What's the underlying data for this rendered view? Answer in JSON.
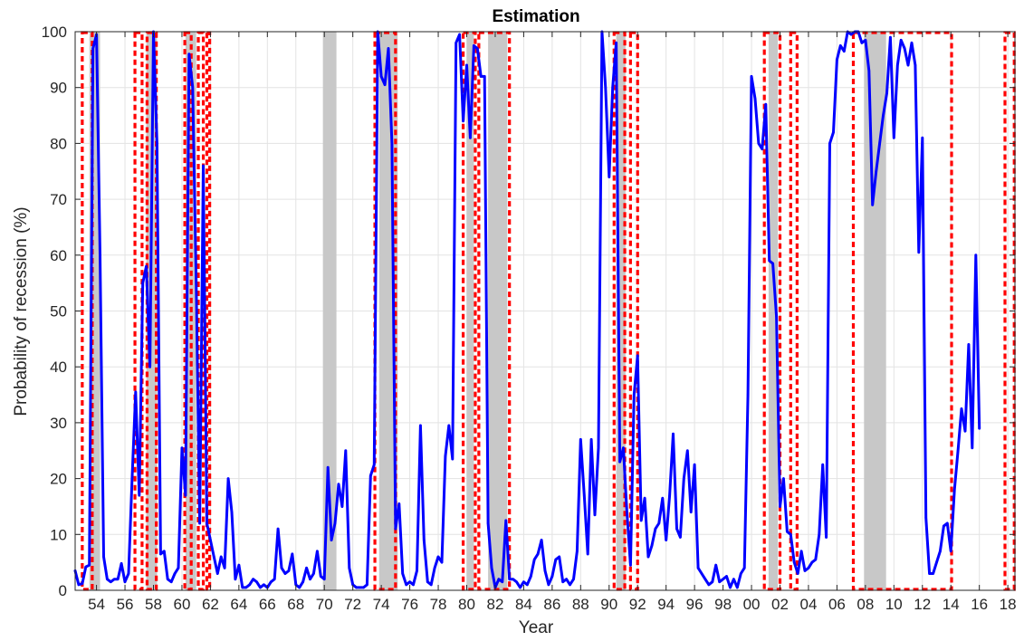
{
  "chart_data": {
    "type": "line",
    "title": "Estimation",
    "xlabel": "Year",
    "ylabel": "Probability of recession (%)",
    "xlim": [
      1952.5,
      2018.5
    ],
    "ylim": [
      0,
      100
    ],
    "grid": true,
    "x_tick_values": [
      1954,
      1956,
      1958,
      1960,
      1962,
      1964,
      1966,
      1968,
      1970,
      1972,
      1974,
      1976,
      1978,
      1980,
      1982,
      1984,
      1986,
      1988,
      1990,
      1992,
      1994,
      1996,
      1998,
      2000,
      2002,
      2004,
      2006,
      2008,
      2010,
      2012,
      2014,
      2016,
      2018
    ],
    "x_tick_labels": [
      "54",
      "56",
      "58",
      "60",
      "62",
      "64",
      "66",
      "68",
      "70",
      "72",
      "74",
      "76",
      "78",
      "80",
      "82",
      "84",
      "86",
      "88",
      "90",
      "92",
      "94",
      "96",
      "98",
      "00",
      "02",
      "04",
      "06",
      "08",
      "10",
      "12",
      "14",
      "16",
      "18"
    ],
    "y_tick_values": [
      0,
      10,
      20,
      30,
      40,
      50,
      60,
      70,
      80,
      90,
      100
    ],
    "y_tick_labels": [
      "0",
      "10",
      "20",
      "30",
      "40",
      "50",
      "60",
      "70",
      "80",
      "90",
      "100"
    ],
    "recession_shading": [
      [
        1953.5,
        1954.25
      ],
      [
        1957.5,
        1958.25
      ],
      [
        1960.25,
        1961.0
      ],
      [
        1969.9,
        1970.85
      ],
      [
        1973.85,
        1975.15
      ],
      [
        1980.0,
        1980.5
      ],
      [
        1981.5,
        1982.85
      ],
      [
        1990.5,
        1991.15
      ],
      [
        2001.2,
        2001.85
      ],
      [
        2007.9,
        2009.45
      ]
    ],
    "estimated_recession_boxes": [
      [
        1953.0,
        1953.7
      ],
      [
        1956.7,
        1957.2
      ],
      [
        1957.55,
        1958.2
      ],
      [
        1960.2,
        1960.65
      ],
      [
        1961.15,
        1961.5
      ],
      [
        1961.75,
        1961.95
      ],
      [
        1973.55,
        1975.0
      ],
      [
        1979.75,
        1980.6
      ],
      [
        1980.85,
        1983.0
      ],
      [
        1990.35,
        1991.1
      ],
      [
        1991.5,
        1992.0
      ],
      [
        2000.9,
        2002.0
      ],
      [
        2002.75,
        2003.2
      ],
      [
        2007.15,
        2014.05
      ],
      [
        2017.8,
        2018.45
      ]
    ],
    "series": [
      {
        "color": "#0000ff",
        "points": [
          [
            1952.5,
            3.5
          ],
          [
            1952.75,
            1.0
          ],
          [
            1953.0,
            1.2
          ],
          [
            1953.25,
            4.2
          ],
          [
            1953.5,
            4.5
          ],
          [
            1953.75,
            97
          ],
          [
            1954.0,
            99.5
          ],
          [
            1954.25,
            60
          ],
          [
            1954.5,
            6
          ],
          [
            1954.75,
            2
          ],
          [
            1955.0,
            1.5
          ],
          [
            1955.25,
            2
          ],
          [
            1955.5,
            2
          ],
          [
            1955.75,
            4.8
          ],
          [
            1956.0,
            1.5
          ],
          [
            1956.25,
            3
          ],
          [
            1956.5,
            20
          ],
          [
            1956.75,
            35.5
          ],
          [
            1957.0,
            17
          ],
          [
            1957.25,
            55
          ],
          [
            1957.5,
            58
          ],
          [
            1957.75,
            40
          ],
          [
            1958.0,
            100
          ],
          [
            1958.25,
            80
          ],
          [
            1958.5,
            6.5
          ],
          [
            1958.75,
            7
          ],
          [
            1959.0,
            2
          ],
          [
            1959.25,
            1.5
          ],
          [
            1959.5,
            3
          ],
          [
            1959.75,
            4
          ],
          [
            1960.0,
            25.5
          ],
          [
            1960.25,
            17
          ],
          [
            1960.5,
            96
          ],
          [
            1960.75,
            90
          ],
          [
            1961.0,
            55
          ],
          [
            1961.25,
            12
          ],
          [
            1961.5,
            76
          ],
          [
            1961.75,
            12
          ],
          [
            1962.0,
            9
          ],
          [
            1962.25,
            6
          ],
          [
            1962.5,
            3
          ],
          [
            1962.75,
            6
          ],
          [
            1963.0,
            4
          ],
          [
            1963.25,
            20
          ],
          [
            1963.5,
            14
          ],
          [
            1963.75,
            2
          ],
          [
            1964.0,
            4.5
          ],
          [
            1964.25,
            0.5
          ],
          [
            1964.5,
            0.5
          ],
          [
            1964.75,
            1
          ],
          [
            1965.0,
            2
          ],
          [
            1965.25,
            1.5
          ],
          [
            1965.5,
            0.5
          ],
          [
            1965.75,
            1
          ],
          [
            1966.0,
            0.5
          ],
          [
            1966.25,
            1.5
          ],
          [
            1966.5,
            2
          ],
          [
            1966.75,
            11
          ],
          [
            1967.0,
            4
          ],
          [
            1967.25,
            3
          ],
          [
            1967.5,
            3.5
          ],
          [
            1967.75,
            6.5
          ],
          [
            1968.0,
            1
          ],
          [
            1968.25,
            0.5
          ],
          [
            1968.5,
            1.5
          ],
          [
            1968.75,
            4
          ],
          [
            1969.0,
            2
          ],
          [
            1969.25,
            3
          ],
          [
            1969.5,
            7
          ],
          [
            1969.75,
            2.5
          ],
          [
            1970.0,
            2
          ],
          [
            1970.25,
            22
          ],
          [
            1970.5,
            9
          ],
          [
            1970.75,
            12
          ],
          [
            1971.0,
            19
          ],
          [
            1971.25,
            15
          ],
          [
            1971.5,
            25
          ],
          [
            1971.75,
            4
          ],
          [
            1972.0,
            1
          ],
          [
            1972.25,
            0.5
          ],
          [
            1972.5,
            0.5
          ],
          [
            1972.75,
            0.5
          ],
          [
            1973.0,
            1
          ],
          [
            1973.25,
            20.5
          ],
          [
            1973.5,
            22.5
          ],
          [
            1973.75,
            100
          ],
          [
            1974.0,
            92
          ],
          [
            1974.25,
            90.5
          ],
          [
            1974.5,
            97
          ],
          [
            1974.75,
            80
          ],
          [
            1975.0,
            11
          ],
          [
            1975.25,
            15.5
          ],
          [
            1975.5,
            3
          ],
          [
            1975.75,
            1
          ],
          [
            1976.0,
            1.5
          ],
          [
            1976.25,
            1
          ],
          [
            1976.5,
            3.5
          ],
          [
            1976.75,
            29.5
          ],
          [
            1977.0,
            9
          ],
          [
            1977.25,
            1.5
          ],
          [
            1977.5,
            1
          ],
          [
            1977.75,
            4
          ],
          [
            1978.0,
            6
          ],
          [
            1978.25,
            5
          ],
          [
            1978.5,
            24
          ],
          [
            1978.75,
            29.5
          ],
          [
            1979.0,
            23.5
          ],
          [
            1979.25,
            98
          ],
          [
            1979.5,
            99.5
          ],
          [
            1979.75,
            84
          ],
          [
            1980.0,
            94
          ],
          [
            1980.25,
            81
          ],
          [
            1980.5,
            97.5
          ],
          [
            1980.75,
            97
          ],
          [
            1981.0,
            92
          ],
          [
            1981.25,
            92
          ],
          [
            1981.5,
            12
          ],
          [
            1981.75,
            4
          ],
          [
            1982.0,
            0.5
          ],
          [
            1982.25,
            2
          ],
          [
            1982.5,
            1.5
          ],
          [
            1982.75,
            12.5
          ],
          [
            1983.0,
            2
          ],
          [
            1983.25,
            2
          ],
          [
            1983.5,
            1.5
          ],
          [
            1983.75,
            0.5
          ],
          [
            1984.0,
            1.5
          ],
          [
            1984.25,
            1
          ],
          [
            1984.5,
            2.5
          ],
          [
            1984.75,
            5.5
          ],
          [
            1985.0,
            6.5
          ],
          [
            1985.25,
            9
          ],
          [
            1985.5,
            3.5
          ],
          [
            1985.75,
            1
          ],
          [
            1986.0,
            2.5
          ],
          [
            1986.25,
            5.5
          ],
          [
            1986.5,
            6
          ],
          [
            1986.75,
            1.5
          ],
          [
            1987.0,
            2
          ],
          [
            1987.25,
            1
          ],
          [
            1987.5,
            2
          ],
          [
            1987.75,
            7
          ],
          [
            1988.0,
            27
          ],
          [
            1988.25,
            17
          ],
          [
            1988.5,
            6.5
          ],
          [
            1988.75,
            27
          ],
          [
            1989.0,
            13.5
          ],
          [
            1989.25,
            25.5
          ],
          [
            1989.5,
            100
          ],
          [
            1989.75,
            90
          ],
          [
            1990.0,
            74
          ],
          [
            1990.25,
            90
          ],
          [
            1990.5,
            98
          ],
          [
            1990.75,
            23
          ],
          [
            1991.0,
            25.5
          ],
          [
            1991.25,
            14
          ],
          [
            1991.5,
            4.5
          ],
          [
            1991.75,
            35
          ],
          [
            1992.0,
            42
          ],
          [
            1992.25,
            12.5
          ],
          [
            1992.5,
            16.5
          ],
          [
            1992.75,
            6
          ],
          [
            1993.0,
            8
          ],
          [
            1993.25,
            11
          ],
          [
            1993.5,
            12
          ],
          [
            1993.75,
            16.5
          ],
          [
            1994.0,
            9
          ],
          [
            1994.25,
            17
          ],
          [
            1994.5,
            28
          ],
          [
            1994.75,
            11
          ],
          [
            1995.0,
            9.5
          ],
          [
            1995.25,
            20
          ],
          [
            1995.5,
            25
          ],
          [
            1995.75,
            14
          ],
          [
            1996.0,
            22.5
          ],
          [
            1996.25,
            4
          ],
          [
            1996.5,
            3
          ],
          [
            1996.75,
            2
          ],
          [
            1997.0,
            1
          ],
          [
            1997.25,
            1.5
          ],
          [
            1997.5,
            4.5
          ],
          [
            1997.75,
            1.5
          ],
          [
            1998.0,
            2
          ],
          [
            1998.25,
            2.5
          ],
          [
            1998.5,
            0.5
          ],
          [
            1998.75,
            2
          ],
          [
            1999.0,
            0.5
          ],
          [
            1999.25,
            3
          ],
          [
            1999.5,
            4
          ],
          [
            1999.75,
            35
          ],
          [
            2000.0,
            92
          ],
          [
            2000.25,
            88
          ],
          [
            2000.5,
            80
          ],
          [
            2000.75,
            79
          ],
          [
            2001.0,
            87
          ],
          [
            2001.25,
            59
          ],
          [
            2001.5,
            58.5
          ],
          [
            2001.75,
            49
          ],
          [
            2002.0,
            15
          ],
          [
            2002.25,
            20
          ],
          [
            2002.5,
            10.5
          ],
          [
            2002.75,
            10
          ],
          [
            2003.0,
            5
          ],
          [
            2003.25,
            3
          ],
          [
            2003.5,
            7
          ],
          [
            2003.75,
            3.5
          ],
          [
            2004.0,
            4
          ],
          [
            2004.25,
            5
          ],
          [
            2004.5,
            5.5
          ],
          [
            2004.75,
            10
          ],
          [
            2005.0,
            22.5
          ],
          [
            2005.25,
            9.5
          ],
          [
            2005.5,
            80
          ],
          [
            2005.75,
            82
          ],
          [
            2006.0,
            95
          ],
          [
            2006.25,
            97.5
          ],
          [
            2006.5,
            96.5
          ],
          [
            2006.75,
            100
          ],
          [
            2007.0,
            99.5
          ],
          [
            2007.25,
            100
          ],
          [
            2007.5,
            100
          ],
          [
            2007.75,
            98
          ],
          [
            2008.0,
            98.5
          ],
          [
            2008.25,
            93
          ],
          [
            2008.5,
            69
          ],
          [
            2008.75,
            75
          ],
          [
            2009.0,
            80
          ],
          [
            2009.25,
            85
          ],
          [
            2009.5,
            89
          ],
          [
            2009.75,
            99
          ],
          [
            2010.0,
            81
          ],
          [
            2010.25,
            94
          ],
          [
            2010.5,
            98.5
          ],
          [
            2010.75,
            97
          ],
          [
            2011.0,
            94
          ],
          [
            2011.25,
            98
          ],
          [
            2011.5,
            94
          ],
          [
            2011.75,
            60.5
          ],
          [
            2012.0,
            81
          ],
          [
            2012.25,
            13
          ],
          [
            2012.5,
            3
          ],
          [
            2012.75,
            3
          ],
          [
            2013.0,
            5
          ],
          [
            2013.25,
            7
          ],
          [
            2013.5,
            11.5
          ],
          [
            2013.75,
            12
          ],
          [
            2014.0,
            7
          ],
          [
            2014.25,
            18
          ],
          [
            2014.5,
            25
          ],
          [
            2014.75,
            32.5
          ],
          [
            2015.0,
            28.5
          ],
          [
            2015.25,
            44
          ],
          [
            2015.5,
            25.5
          ],
          [
            2015.75,
            60
          ],
          [
            2016.0,
            29
          ]
        ]
      }
    ]
  }
}
